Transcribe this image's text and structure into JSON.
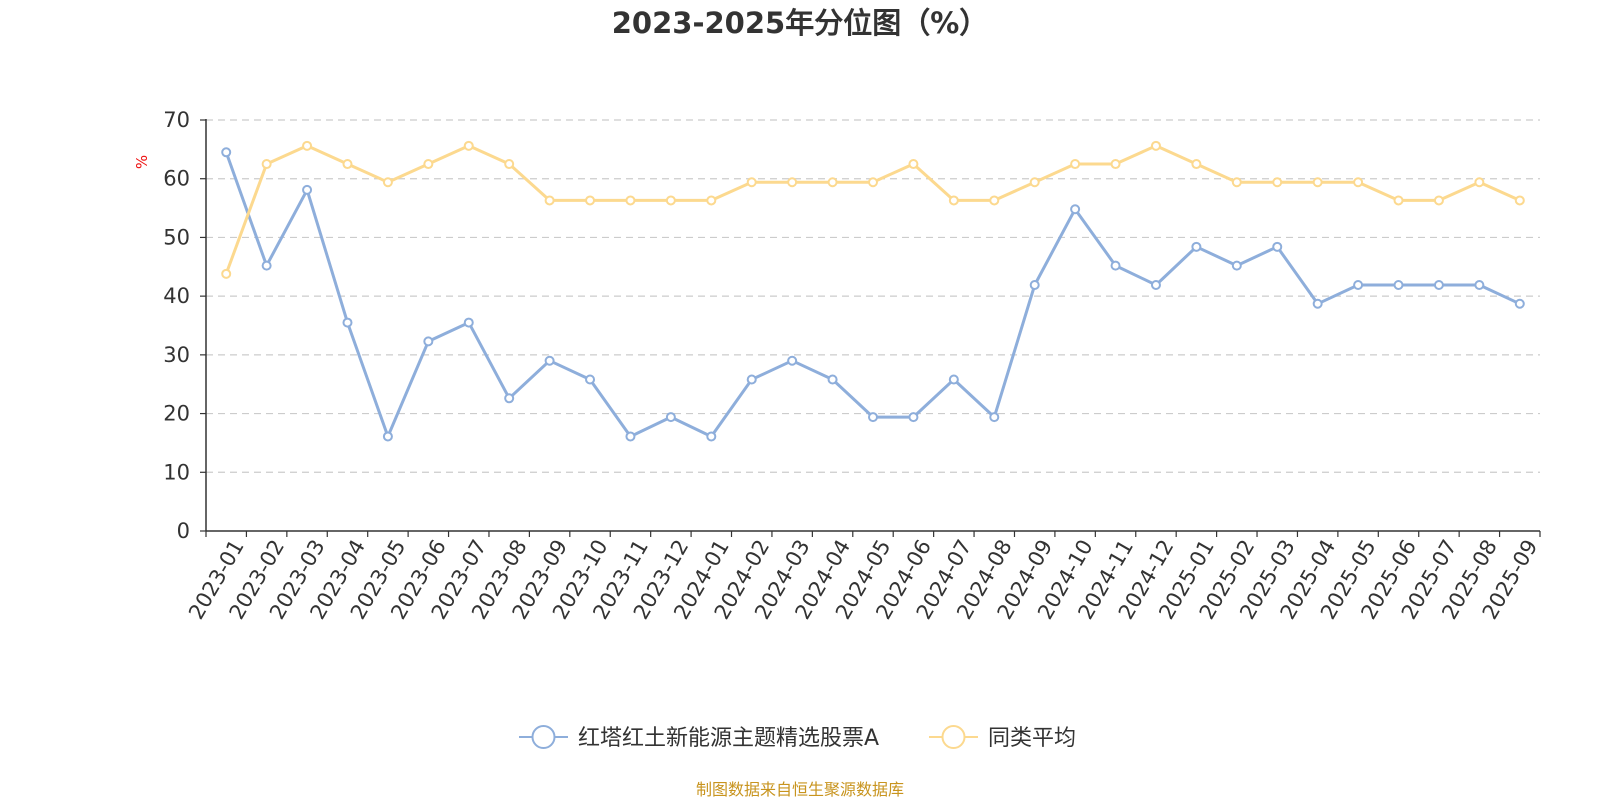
{
  "chart_data": {
    "type": "line",
    "title": "2023-2025年分位图（%）",
    "ylabel": "%",
    "xlabel": "",
    "ylim": [
      0,
      70
    ],
    "yticks": [
      0,
      10,
      20,
      30,
      40,
      50,
      60,
      70
    ],
    "grid": "horizontal dashed",
    "legend_position": "bottom-center",
    "categories": [
      "2023-01",
      "2023-02",
      "2023-03",
      "2023-04",
      "2023-05",
      "2023-06",
      "2023-07",
      "2023-08",
      "2023-09",
      "2023-10",
      "2023-11",
      "2023-12",
      "2024-01",
      "2024-02",
      "2024-03",
      "2024-04",
      "2024-05",
      "2024-06",
      "2024-07",
      "2024-08",
      "2024-09",
      "2024-10",
      "2024-11",
      "2024-12",
      "2025-01",
      "2025-02",
      "2025-03",
      "2025-04",
      "2025-05",
      "2025-06",
      "2025-07",
      "2025-08",
      "2025-09"
    ],
    "series": [
      {
        "name": "红塔红土新能源主题精选股票A",
        "color": "#8eaedb",
        "values": [
          64.5,
          45.2,
          58.1,
          35.5,
          16.1,
          32.3,
          35.5,
          22.6,
          29.0,
          25.8,
          16.1,
          19.4,
          16.1,
          25.8,
          29.0,
          25.8,
          19.4,
          19.4,
          25.8,
          19.4,
          41.9,
          54.8,
          45.2,
          41.9,
          48.4,
          45.2,
          48.4,
          38.7,
          41.9,
          41.9,
          41.9,
          41.9,
          38.7
        ]
      },
      {
        "name": "同类平均",
        "color": "#fcd98f",
        "values": [
          43.8,
          62.5,
          65.6,
          62.5,
          59.4,
          62.5,
          65.6,
          62.5,
          56.3,
          56.3,
          56.3,
          56.3,
          56.3,
          59.4,
          59.4,
          59.4,
          59.4,
          62.5,
          56.3,
          56.3,
          59.4,
          62.5,
          62.5,
          65.6,
          62.5,
          59.4,
          59.4,
          59.4,
          59.4,
          56.3,
          56.3,
          59.4,
          56.3
        ]
      }
    ],
    "source": "制图数据来自恒生聚源数据库"
  },
  "colors": {
    "axis": "#333333",
    "grid": "#cccccc",
    "source": "#c8941e",
    "unit": "#ee1111"
  }
}
